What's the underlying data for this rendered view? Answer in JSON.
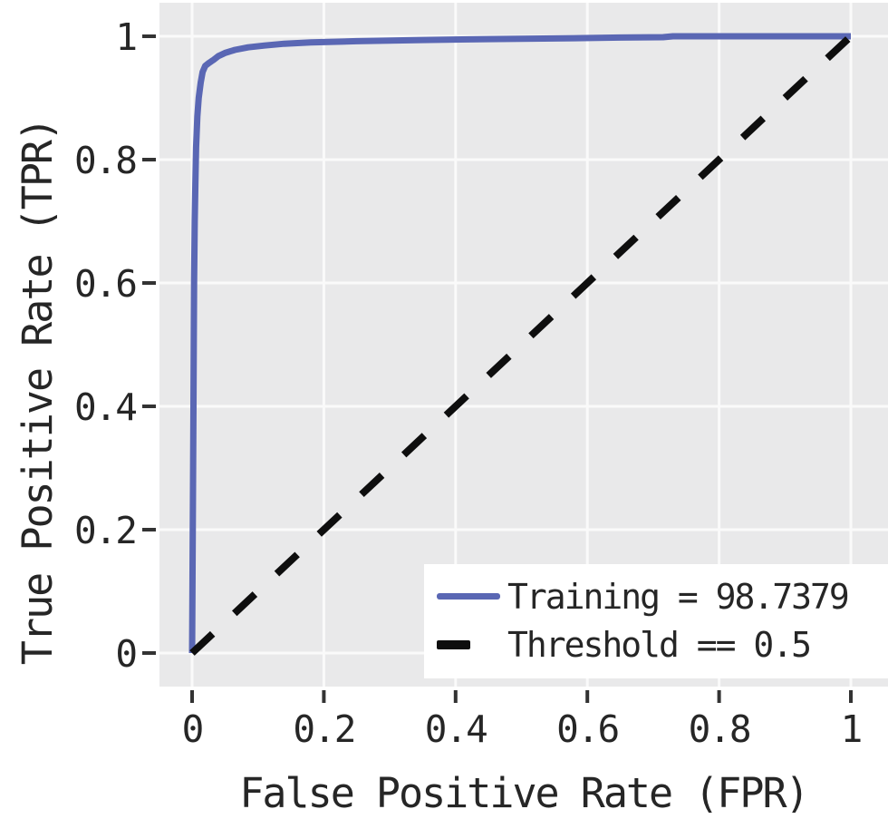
{
  "chart_data": {
    "type": "line",
    "title": "",
    "xlabel": "False Positive Rate (FPR)",
    "ylabel": "True Positive Rate (TPR)",
    "xlim": [
      0,
      1
    ],
    "ylim": [
      0,
      1
    ],
    "grid": true,
    "plot_background": "#e9e9ea",
    "gridline_color": "#fafafa",
    "tick_color": "#333333",
    "xticks": {
      "values": [
        0,
        0.2,
        0.4,
        0.6,
        0.8,
        1
      ],
      "labels": [
        "0",
        "0.2",
        "0.4",
        "0.6",
        "0.8",
        "1"
      ]
    },
    "yticks": {
      "values": [
        0,
        0.2,
        0.4,
        0.6,
        0.8,
        1
      ],
      "labels": [
        "0",
        "0.2",
        "0.4",
        "0.6",
        "0.8",
        "1"
      ]
    },
    "legend_position": "bottom-right",
    "series": [
      {
        "name": "Training = 98.7379",
        "auc_percent": 98.7379,
        "color": "#5a67b4",
        "line_style": "solid",
        "x": [
          0,
          0.002,
          0.003,
          0.004,
          0.005,
          0.006,
          0.008,
          0.01,
          0.013,
          0.016,
          0.02,
          0.026,
          0.03,
          0.033,
          0.04,
          0.05,
          0.065,
          0.085,
          0.11,
          0.14,
          0.18,
          0.25,
          0.35,
          0.45,
          0.55,
          0.65,
          0.715,
          0.73,
          1.0
        ],
        "y": [
          0,
          0.4,
          0.6,
          0.7,
          0.76,
          0.82,
          0.87,
          0.9,
          0.925,
          0.942,
          0.952,
          0.957,
          0.96,
          0.962,
          0.968,
          0.973,
          0.978,
          0.982,
          0.985,
          0.988,
          0.99,
          0.992,
          0.994,
          0.9955,
          0.9965,
          0.998,
          0.9985,
          1.0,
          1.0
        ]
      },
      {
        "name": "Threshold == 0.5",
        "threshold": 0.5,
        "color": "#0e0e0e",
        "line_style": "dashed",
        "x": [
          0,
          1
        ],
        "y": [
          0,
          1
        ]
      }
    ]
  },
  "legend": {
    "items": [
      {
        "label": "Training = 98.7379",
        "swatch": "solid-line",
        "color": "#5a67b4"
      },
      {
        "label": "Threshold == 0.5",
        "swatch": "dash",
        "color": "#0e0e0e"
      }
    ]
  },
  "colors": {
    "page_bg": "#ffffff",
    "text": "#262626"
  }
}
